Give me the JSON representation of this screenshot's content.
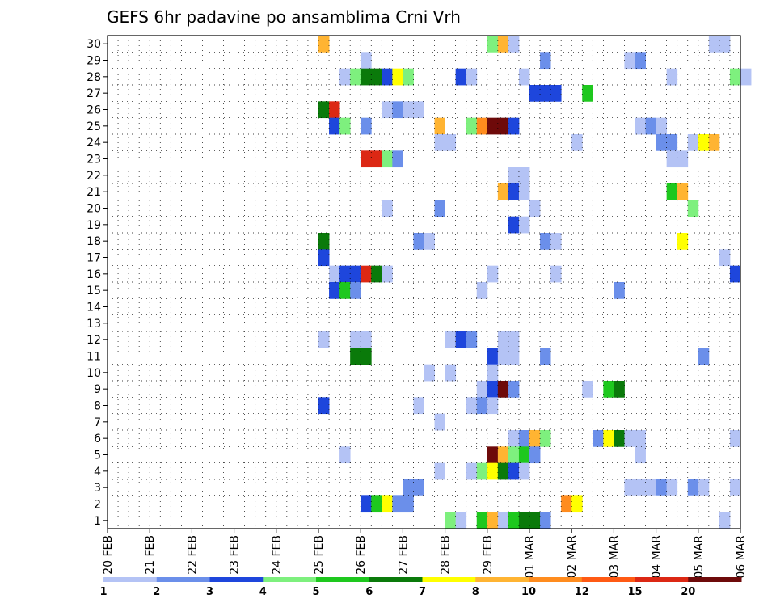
{
  "chart_data": {
    "type": "heatmap",
    "title": "GEFS 6hr padavine po ansamblima Crni Vrh",
    "y_ticks": [
      "1",
      "2",
      "3",
      "4",
      "5",
      "6",
      "7",
      "8",
      "9",
      "10",
      "11",
      "12",
      "13",
      "14",
      "15",
      "16",
      "17",
      "18",
      "19",
      "20",
      "21",
      "22",
      "23",
      "24",
      "25",
      "26",
      "27",
      "28",
      "29",
      "30"
    ],
    "x_ticks": [
      "20 FEB",
      "21 FEB",
      "22 FEB",
      "23 FEB",
      "24 FEB",
      "25 FEB",
      "26 FEB",
      "27 FEB",
      "28 FEB",
      "29 FEB",
      "01 MAR",
      "02 MAR",
      "03 MAR",
      "04 MAR",
      "05 MAR",
      "06 MAR"
    ],
    "legend": {
      "labels": [
        "1",
        "2",
        "3",
        "4",
        "5",
        "6",
        "7",
        "8",
        "10",
        "12",
        "15",
        "20"
      ],
      "colors": [
        "#b4c3f5",
        "#6b8fea",
        "#1e46dc",
        "#7ef07e",
        "#1ec81e",
        "#0a7a0a",
        "#ffff00",
        "#ffb432",
        "#ff8c1e",
        "#ff5a14",
        "#dc2814",
        "#6e0a0a"
      ]
    },
    "palette": {
      "lb": "#b4c3f5",
      "mb": "#6b8fea",
      "db": "#1e46dc",
      "lg": "#7ef07e",
      "g": "#1ec81e",
      "dg": "#0a7a0a",
      "y": "#ffff00",
      "lo": "#ffb432",
      "o": "#ff8c1e",
      "ro": "#ff5a14",
      "r": "#dc2814",
      "dr": "#6e0a0a"
    },
    "cells": [
      [
        30,
        20,
        "lo"
      ],
      [
        30,
        36,
        "lg"
      ],
      [
        30,
        37,
        "lo"
      ],
      [
        30,
        38,
        "lb"
      ],
      [
        30,
        57,
        "lb"
      ],
      [
        30,
        58,
        "lb"
      ],
      [
        29,
        24,
        "lb"
      ],
      [
        29,
        41,
        "mb"
      ],
      [
        29,
        49,
        "lb"
      ],
      [
        29,
        50,
        "mb"
      ],
      [
        28,
        22,
        "lb"
      ],
      [
        28,
        23,
        "lg"
      ],
      [
        28,
        24,
        "dg"
      ],
      [
        28,
        25,
        "dg"
      ],
      [
        28,
        26,
        "db"
      ],
      [
        28,
        27,
        "y"
      ],
      [
        28,
        28,
        "lg"
      ],
      [
        28,
        33,
        "db"
      ],
      [
        28,
        34,
        "lb"
      ],
      [
        28,
        39,
        "lb"
      ],
      [
        28,
        53,
        "lb"
      ],
      [
        28,
        59,
        "lg"
      ],
      [
        28,
        60,
        "lb"
      ],
      [
        27,
        40,
        "db"
      ],
      [
        27,
        41,
        "db"
      ],
      [
        27,
        42,
        "db"
      ],
      [
        27,
        45,
        "g"
      ],
      [
        26,
        20,
        "dg"
      ],
      [
        26,
        21,
        "r"
      ],
      [
        26,
        26,
        "lb"
      ],
      [
        26,
        27,
        "mb"
      ],
      [
        26,
        28,
        "lb"
      ],
      [
        26,
        29,
        "lb"
      ],
      [
        25,
        21,
        "db"
      ],
      [
        25,
        22,
        "lg"
      ],
      [
        25,
        24,
        "mb"
      ],
      [
        25,
        31,
        "lo"
      ],
      [
        25,
        34,
        "lg"
      ],
      [
        25,
        35,
        "o"
      ],
      [
        25,
        36,
        "dr"
      ],
      [
        25,
        37,
        "dr"
      ],
      [
        25,
        38,
        "db"
      ],
      [
        25,
        50,
        "lb"
      ],
      [
        25,
        51,
        "mb"
      ],
      [
        25,
        52,
        "lb"
      ],
      [
        24,
        31,
        "lb"
      ],
      [
        24,
        32,
        "lb"
      ],
      [
        24,
        44,
        "lb"
      ],
      [
        24,
        52,
        "mb"
      ],
      [
        24,
        53,
        "mb"
      ],
      [
        24,
        55,
        "lb"
      ],
      [
        24,
        56,
        "y"
      ],
      [
        24,
        57,
        "lo"
      ],
      [
        23,
        24,
        "r"
      ],
      [
        23,
        25,
        "r"
      ],
      [
        23,
        26,
        "lg"
      ],
      [
        23,
        27,
        "mb"
      ],
      [
        23,
        53,
        "lb"
      ],
      [
        23,
        54,
        "lb"
      ],
      [
        22,
        38,
        "lb"
      ],
      [
        22,
        39,
        "lb"
      ],
      [
        21,
        37,
        "lo"
      ],
      [
        21,
        38,
        "db"
      ],
      [
        21,
        39,
        "lb"
      ],
      [
        21,
        53,
        "g"
      ],
      [
        21,
        54,
        "lo"
      ],
      [
        20,
        26,
        "lb"
      ],
      [
        20,
        31,
        "mb"
      ],
      [
        20,
        40,
        "lb"
      ],
      [
        20,
        55,
        "lg"
      ],
      [
        19,
        38,
        "db"
      ],
      [
        19,
        39,
        "lb"
      ],
      [
        18,
        20,
        "dg"
      ],
      [
        18,
        29,
        "mb"
      ],
      [
        18,
        30,
        "lb"
      ],
      [
        18,
        41,
        "mb"
      ],
      [
        18,
        42,
        "lb"
      ],
      [
        18,
        54,
        "y"
      ],
      [
        17,
        20,
        "db"
      ],
      [
        17,
        58,
        "lb"
      ],
      [
        16,
        21,
        "lb"
      ],
      [
        16,
        22,
        "db"
      ],
      [
        16,
        23,
        "db"
      ],
      [
        16,
        24,
        "r"
      ],
      [
        16,
        25,
        "dg"
      ],
      [
        16,
        26,
        "lb"
      ],
      [
        16,
        36,
        "lb"
      ],
      [
        16,
        42,
        "lb"
      ],
      [
        16,
        59,
        "db"
      ],
      [
        15,
        21,
        "db"
      ],
      [
        15,
        22,
        "g"
      ],
      [
        15,
        23,
        "mb"
      ],
      [
        15,
        35,
        "lb"
      ],
      [
        15,
        48,
        "mb"
      ],
      [
        12,
        20,
        "lb"
      ],
      [
        12,
        23,
        "lb"
      ],
      [
        12,
        24,
        "lb"
      ],
      [
        12,
        32,
        "lb"
      ],
      [
        12,
        33,
        "db"
      ],
      [
        12,
        34,
        "mb"
      ],
      [
        12,
        37,
        "lb"
      ],
      [
        12,
        38,
        "lb"
      ],
      [
        11,
        23,
        "dg"
      ],
      [
        11,
        24,
        "dg"
      ],
      [
        11,
        36,
        "db"
      ],
      [
        11,
        37,
        "lb"
      ],
      [
        11,
        38,
        "lb"
      ],
      [
        11,
        41,
        "mb"
      ],
      [
        11,
        56,
        "mb"
      ],
      [
        10,
        30,
        "lb"
      ],
      [
        10,
        32,
        "lb"
      ],
      [
        10,
        36,
        "lb"
      ],
      [
        9,
        35,
        "lb"
      ],
      [
        9,
        36,
        "db"
      ],
      [
        9,
        37,
        "dr"
      ],
      [
        9,
        38,
        "mb"
      ],
      [
        9,
        45,
        "lb"
      ],
      [
        9,
        47,
        "g"
      ],
      [
        9,
        48,
        "dg"
      ],
      [
        8,
        20,
        "db"
      ],
      [
        8,
        29,
        "lb"
      ],
      [
        8,
        34,
        "lb"
      ],
      [
        8,
        35,
        "mb"
      ],
      [
        8,
        36,
        "lb"
      ],
      [
        7,
        31,
        "lb"
      ],
      [
        6,
        38,
        "lb"
      ],
      [
        6,
        39,
        "mb"
      ],
      [
        6,
        40,
        "lo"
      ],
      [
        6,
        41,
        "lg"
      ],
      [
        6,
        46,
        "mb"
      ],
      [
        6,
        47,
        "y"
      ],
      [
        6,
        48,
        "dg"
      ],
      [
        6,
        49,
        "lb"
      ],
      [
        6,
        50,
        "lb"
      ],
      [
        6,
        59,
        "lb"
      ],
      [
        5,
        22,
        "lb"
      ],
      [
        5,
        36,
        "dr"
      ],
      [
        5,
        37,
        "lo"
      ],
      [
        5,
        38,
        "lg"
      ],
      [
        5,
        39,
        "g"
      ],
      [
        5,
        40,
        "mb"
      ],
      [
        5,
        50,
        "lb"
      ],
      [
        4,
        31,
        "lb"
      ],
      [
        4,
        34,
        "lb"
      ],
      [
        4,
        35,
        "lg"
      ],
      [
        4,
        36,
        "y"
      ],
      [
        4,
        37,
        "dg"
      ],
      [
        4,
        38,
        "db"
      ],
      [
        4,
        39,
        "lb"
      ],
      [
        3,
        28,
        "mb"
      ],
      [
        3,
        29,
        "mb"
      ],
      [
        3,
        49,
        "lb"
      ],
      [
        3,
        50,
        "lb"
      ],
      [
        3,
        51,
        "lb"
      ],
      [
        3,
        52,
        "mb"
      ],
      [
        3,
        53,
        "lb"
      ],
      [
        3,
        55,
        "mb"
      ],
      [
        3,
        56,
        "lb"
      ],
      [
        3,
        59,
        "lb"
      ],
      [
        2,
        24,
        "db"
      ],
      [
        2,
        25,
        "g"
      ],
      [
        2,
        26,
        "y"
      ],
      [
        2,
        27,
        "mb"
      ],
      [
        2,
        28,
        "mb"
      ],
      [
        2,
        43,
        "o"
      ],
      [
        2,
        44,
        "y"
      ],
      [
        1,
        32,
        "lg"
      ],
      [
        1,
        33,
        "lb"
      ],
      [
        1,
        35,
        "g"
      ],
      [
        1,
        36,
        "lo"
      ],
      [
        1,
        37,
        "lb"
      ],
      [
        1,
        38,
        "g"
      ],
      [
        1,
        39,
        "dg"
      ],
      [
        1,
        40,
        "dg"
      ],
      [
        1,
        41,
        "mb"
      ],
      [
        1,
        58,
        "lb"
      ]
    ]
  }
}
